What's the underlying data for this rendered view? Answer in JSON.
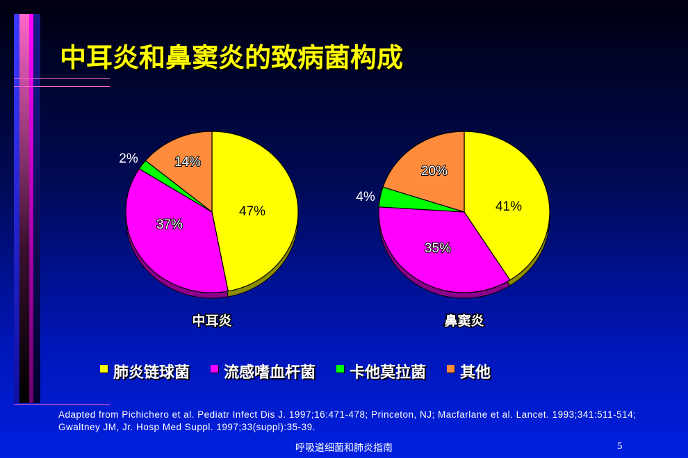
{
  "slide": {
    "title": "中耳炎和鼻窦炎的致病菌构成",
    "citation": "Adapted from Pichichero et al.  Pediatr Infect Dis J. 1997;16:471-478;  Princeton, NJ; Macfarlane et al.   Lancet. 1993;341:511-514; Gwaltney JM, Jr.  Hosp Med Suppl. 1997;33(suppl):35-39.",
    "footer": "呼吸道细菌和肺炎指南",
    "page_number": "5"
  },
  "legend": [
    {
      "label": "肺炎链球菌",
      "color": "#ffff00"
    },
    {
      "label": "流感嗜血杆菌",
      "color": "#ff00ff"
    },
    {
      "label": "卡他莫拉菌",
      "color": "#00ff00"
    },
    {
      "label": "其他",
      "color": "#ff8c3c"
    }
  ],
  "chart_data": [
    {
      "type": "pie",
      "title": "中耳炎",
      "categories": [
        "肺炎链球菌",
        "流感嗜血杆菌",
        "卡他莫拉菌",
        "其他"
      ],
      "values": [
        47,
        37,
        2,
        14
      ],
      "labels": [
        "47%",
        "37%",
        "2%",
        "14%"
      ],
      "colors": [
        "#ffff00",
        "#ff00ff",
        "#00ff00",
        "#ff8c3c"
      ]
    },
    {
      "type": "pie",
      "title": "鼻窦炎",
      "categories": [
        "肺炎链球菌",
        "流感嗜血杆菌",
        "卡他莫拉菌",
        "其他"
      ],
      "values": [
        41,
        35,
        4,
        20
      ],
      "labels": [
        "41%",
        "35%",
        "4%",
        "20%"
      ],
      "colors": [
        "#ffff00",
        "#ff00ff",
        "#00ff00",
        "#ff8c3c"
      ]
    }
  ]
}
